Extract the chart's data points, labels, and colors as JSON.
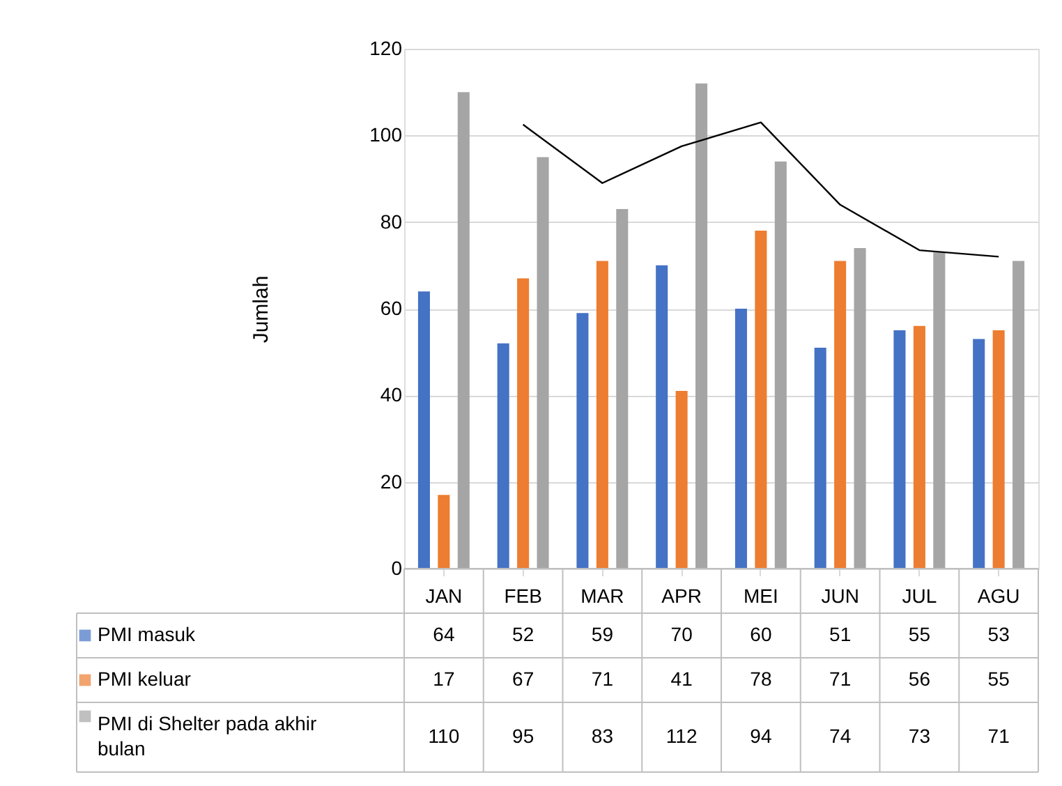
{
  "chart_data": {
    "type": "bar",
    "ylabel": "Jumlah",
    "categories": [
      "JAN",
      "FEB",
      "MAR",
      "APR",
      "MEI",
      "JUN",
      "JUL",
      "AGU"
    ],
    "series": [
      {
        "name": "PMI masuk",
        "color": "#4472c4",
        "values": [
          64,
          52,
          59,
          70,
          60,
          51,
          55,
          53
        ],
        "value_labels": [
          "64",
          "52",
          "59",
          "70",
          "60",
          "51",
          "55",
          "53"
        ]
      },
      {
        "name": "PMI keluar",
        "color": "#ed7d31",
        "values": [
          17,
          67,
          71,
          41,
          78,
          71,
          56,
          55
        ],
        "value_labels": [
          "17",
          "67",
          "71",
          "41",
          "78",
          "71",
          "56",
          "55"
        ]
      },
      {
        "name": "PMI di Shelter pada akhir bulan",
        "color": "#a5a5a5",
        "values": [
          110,
          95,
          83,
          112,
          94,
          74,
          73,
          71
        ],
        "value_labels": [
          "110",
          "95",
          "83",
          "112",
          "94",
          "74",
          "73",
          "71"
        ]
      },
      {
        "type": "line",
        "color": "#000000",
        "values": [
          null,
          102.5,
          89,
          97.5,
          103,
          84,
          73.5,
          72
        ]
      }
    ],
    "ylim": [
      0,
      120
    ],
    "yticks": [
      0,
      20,
      40,
      60,
      80,
      100,
      120
    ],
    "grid": "y",
    "legend": "bottom"
  }
}
